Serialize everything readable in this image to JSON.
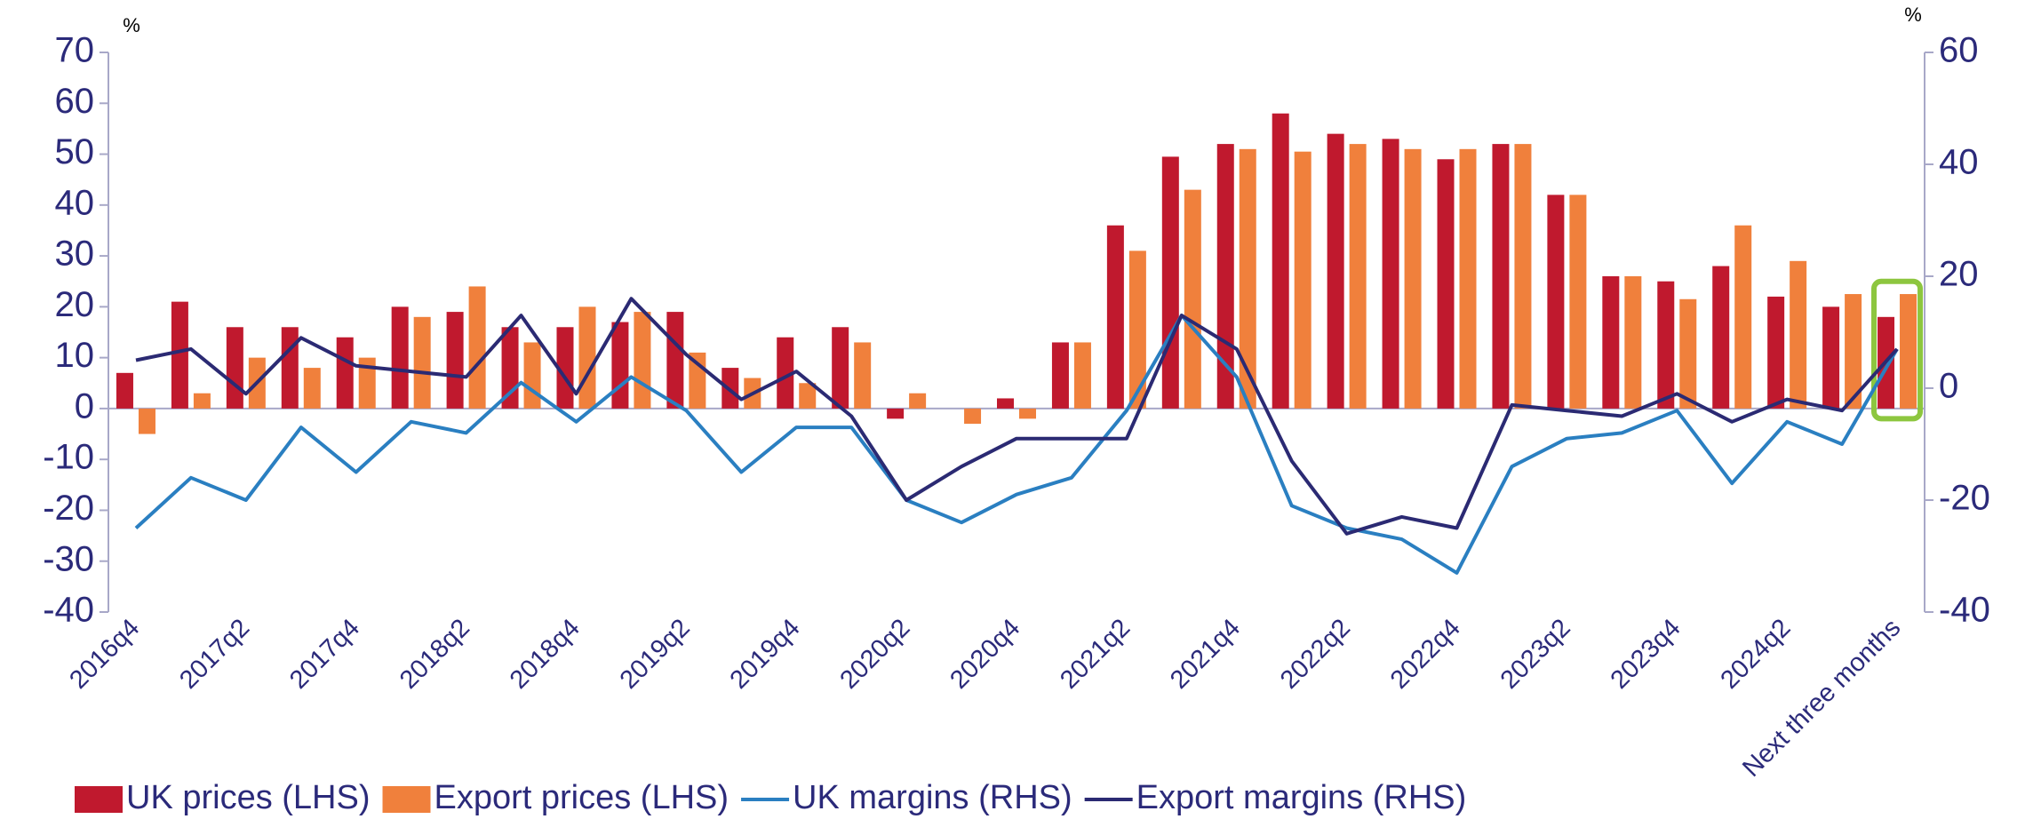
{
  "chart_data": {
    "type": "bar",
    "ylabel": "%",
    "y2label": "%",
    "categories": [
      "2016q4",
      null,
      "2017q2",
      null,
      "2017q4",
      null,
      "2018q2",
      null,
      "2018q4",
      null,
      "2019q2",
      null,
      "2019q4",
      null,
      "2020q2",
      null,
      "2020q4",
      null,
      "2021q2",
      null,
      "2021q4",
      null,
      "2022q2",
      null,
      "2022q4",
      null,
      "2023q2",
      null,
      "2023q4",
      null,
      "2024q2",
      null,
      "Next three months"
    ],
    "series": [
      {
        "name": "UK prices (LHS)",
        "type": "bar",
        "color": "#c0192e",
        "values": [
          7,
          21,
          16,
          16,
          14,
          20,
          19,
          16,
          16,
          17,
          19,
          8,
          14,
          16,
          -2,
          0,
          2,
          13,
          36,
          49.5,
          52,
          58,
          54,
          53,
          49,
          52,
          42,
          26,
          25,
          28,
          22,
          20,
          18
        ]
      },
      {
        "name": "Export prices (LHS)",
        "type": "bar",
        "color": "#f0803c",
        "values": [
          -5,
          3,
          10,
          8,
          10,
          18,
          24,
          13,
          20,
          19,
          11,
          6,
          5,
          13,
          3,
          -3,
          -2,
          13,
          31,
          43,
          51,
          50.5,
          52,
          51,
          51,
          52,
          42,
          26,
          21.5,
          36,
          29,
          22.5,
          22.5
        ]
      },
      {
        "name": "UK margins (RHS)",
        "type": "line",
        "axis": "y2",
        "color": "#2a7fc1",
        "values": [
          -25,
          -16,
          -20,
          -7,
          -15,
          -6,
          -8,
          1,
          -6,
          2,
          -4,
          -15,
          -7,
          -7,
          -20,
          -24,
          -19,
          -16,
          -4,
          13,
          2,
          -21,
          -25,
          -27,
          -33,
          -14,
          -9,
          -8,
          -4,
          -17,
          -6,
          -10,
          7
        ]
      },
      {
        "name": "Export margins (RHS)",
        "type": "line",
        "axis": "y2",
        "color": "#2b2a73",
        "values": [
          5,
          7,
          -1,
          9,
          4,
          3,
          2,
          13,
          -1,
          16,
          6,
          -2,
          3,
          -5,
          -20,
          -14,
          -9,
          -9,
          -9,
          13,
          7,
          -13,
          -26,
          -23,
          -25,
          -3,
          -4,
          -5,
          -1,
          -6,
          -2,
          -4,
          7
        ]
      }
    ],
    "ylim": [
      -40,
      70
    ],
    "yticks": [
      -40,
      -30,
      -20,
      -10,
      0,
      10,
      20,
      30,
      40,
      50,
      60,
      70
    ],
    "y2lim": [
      -40,
      60
    ],
    "y2ticks": [
      -40,
      -20,
      0,
      20,
      40,
      60
    ],
    "grid": false
  }
}
